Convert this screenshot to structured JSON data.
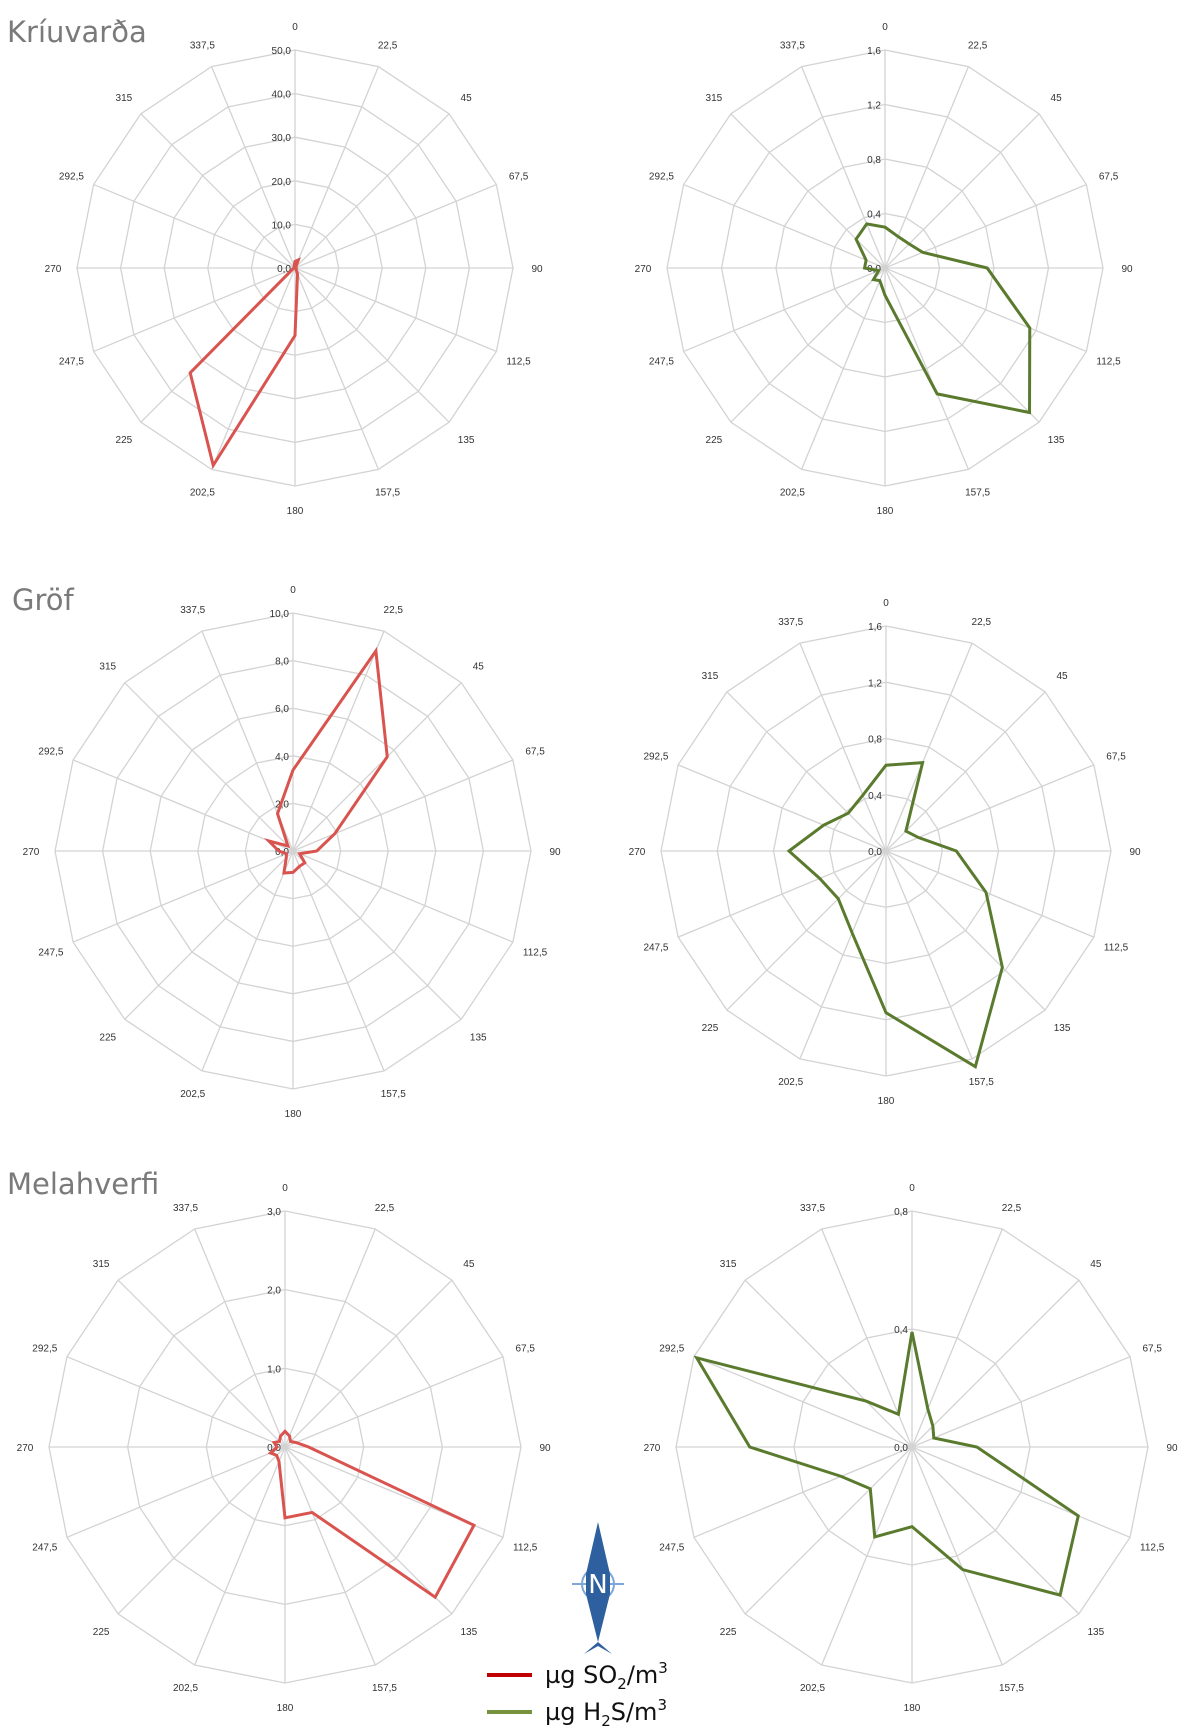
{
  "sites": [
    "Kríuvarða",
    "Gröf",
    "Melahverfi"
  ],
  "directions": [
    "0",
    "22,5",
    "45",
    "67,5",
    "90",
    "112,5",
    "135",
    "157,5",
    "180",
    "202,5",
    "225",
    "247,5",
    "270",
    "292,5",
    "315",
    "337,5"
  ],
  "legend": {
    "so2": {
      "prefix": "µg SO",
      "sub": "2",
      "suffix": "/m",
      "sup": "3",
      "color": "#c0504d"
    },
    "h2s": {
      "prefix": "µg H",
      "sub": "2",
      "suffix": "S/m",
      "sup": "3",
      "color": "#5a7a2e"
    }
  },
  "north_arrow": {
    "letter": "N",
    "icon": "north-arrow-icon",
    "color": "#2e5f9e"
  },
  "chart_data": [
    {
      "type": "radar",
      "site": "Kríuvarða",
      "ylim": [
        0,
        50
      ],
      "ticks": [
        "0,0",
        "10,0",
        "20,0",
        "30,0",
        "40,0",
        "50,0"
      ],
      "grid": true,
      "series": [
        {
          "name": "µg SO2/m3",
          "color": "#d9534f",
          "values": [
            1.5,
            2,
            0.3,
            0.2,
            0.2,
            0.3,
            0.3,
            1.5,
            15.5,
            49,
            34,
            0.5,
            0.3,
            0.2,
            0.2,
            0.5
          ]
        }
      ]
    },
    {
      "type": "radar",
      "site": "Kríuvarða",
      "ylim": [
        0,
        1.6
      ],
      "ticks": [
        "0,0",
        "0,4",
        "0,8",
        "1,2",
        "1,6"
      ],
      "grid": true,
      "series": [
        {
          "name": "µg H2S/m3",
          "color": "#5a7a2e",
          "values": [
            0.3,
            0.25,
            0.25,
            0.3,
            0.75,
            1.15,
            1.5,
            1.0,
            0.2,
            0.1,
            0.12,
            0.05,
            0.15,
            0.15,
            0.3,
            0.35
          ]
        }
      ]
    },
    {
      "type": "radar",
      "site": "Gröf",
      "ylim": [
        0,
        10
      ],
      "ticks": [
        "0,0",
        "2,0",
        "4,0",
        "6,0",
        "8,0",
        "10,0"
      ],
      "grid": true,
      "series": [
        {
          "name": "µg SO2/m3",
          "color": "#d9534f",
          "values": [
            3.4,
            9.1,
            5.6,
            1.9,
            1.0,
            0.3,
            0.7,
            0.7,
            0.9,
            1.0,
            0.4,
            0.3,
            0.6,
            1.1,
            0.3,
            1.7
          ]
        }
      ]
    },
    {
      "type": "radar",
      "site": "Gröf",
      "ylim": [
        0,
        1.6
      ],
      "ticks": [
        "0,0",
        "0,4",
        "0,8",
        "1,2",
        "1,6"
      ],
      "grid": true,
      "series": [
        {
          "name": "µg H2S/m3",
          "color": "#5a7a2e",
          "values": [
            0.61,
            0.68,
            0.2,
            0.25,
            0.5,
            0.77,
            1.17,
            1.66,
            1.15,
            0.63,
            0.48,
            0.51,
            0.69,
            0.48,
            0.38,
            0.43
          ]
        }
      ]
    },
    {
      "type": "radar",
      "site": "Melahverfi",
      "ylim": [
        0,
        3
      ],
      "ticks": [
        "0,0",
        "1,0",
        "2,0",
        "3,0"
      ],
      "grid": true,
      "series": [
        {
          "name": "µg SO2/m3",
          "color": "#d9534f",
          "values": [
            0.2,
            0.15,
            0.1,
            0.15,
            0.3,
            2.6,
            2.7,
            0.9,
            0.9,
            0.2,
            0.15,
            0.2,
            0.1,
            0.15,
            0.1,
            0.15
          ]
        }
      ]
    },
    {
      "type": "radar",
      "site": "Melahverfi",
      "ylim": [
        0,
        0.8
      ],
      "ticks": [
        "0,0",
        "0,4",
        "0,8"
      ],
      "grid": true,
      "series": [
        {
          "name": "µg H2S/m3",
          "color": "#5a7a2e",
          "values": [
            0.39,
            0.14,
            0.1,
            0.08,
            0.22,
            0.61,
            0.71,
            0.45,
            0.27,
            0.33,
            0.2,
            0.26,
            0.55,
            0.79,
            0.22,
            0.12
          ]
        }
      ]
    }
  ]
}
